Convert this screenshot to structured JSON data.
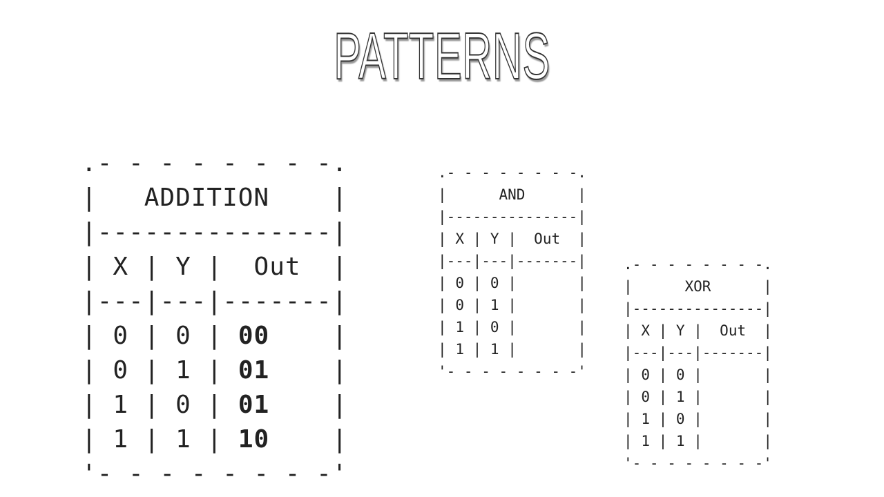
{
  "title": "PATTERNS",
  "tables": {
    "addition": {
      "name": "ADDITION",
      "headers": [
        "X",
        "Y",
        "Out"
      ],
      "rows": [
        [
          "0",
          "0",
          "00"
        ],
        [
          "0",
          "1",
          "01"
        ],
        [
          "1",
          "0",
          "01"
        ],
        [
          "1",
          "1",
          "10"
        ]
      ]
    },
    "and": {
      "name": "AND",
      "headers": [
        "X",
        "Y",
        "Out"
      ],
      "rows": [
        [
          "0",
          "0",
          ""
        ],
        [
          "0",
          "1",
          ""
        ],
        [
          "1",
          "0",
          ""
        ],
        [
          "1",
          "1",
          ""
        ]
      ]
    },
    "xor": {
      "name": "XOR",
      "headers": [
        "X",
        "Y",
        "Out"
      ],
      "rows": [
        [
          "0",
          "0",
          ""
        ],
        [
          "0",
          "1",
          ""
        ],
        [
          "1",
          "0",
          ""
        ],
        [
          "1",
          "1",
          ""
        ]
      ]
    }
  }
}
